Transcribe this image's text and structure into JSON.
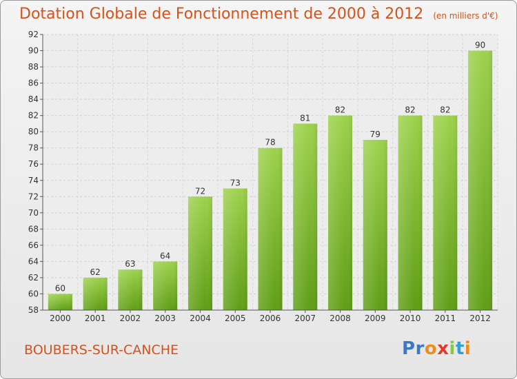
{
  "header": {
    "title": "Dotation Globale de Fonctionnement de 2000 à 2012",
    "unit": "(en milliers d'€)"
  },
  "footer": {
    "commune": "BOUBERS-SUR-CANCHE",
    "logo_letters": [
      "P",
      "r",
      "o",
      "x",
      "i",
      "t",
      "i"
    ],
    "logo_colors": [
      "#3a79c7",
      "#3a79c7",
      "#f08c1e",
      "#e6372b",
      "#8dc63f",
      "#2f9fd8",
      "#f08c1e"
    ]
  },
  "chart_data": {
    "type": "bar",
    "categories": [
      "2000",
      "2001",
      "2002",
      "2003",
      "2004",
      "2005",
      "2006",
      "2007",
      "2008",
      "2009",
      "2010",
      "2011",
      "2012"
    ],
    "values": [
      60,
      62,
      63,
      64,
      72,
      73,
      78,
      81,
      82,
      79,
      82,
      82,
      90
    ],
    "ylim": [
      58,
      92
    ],
    "yticks": [
      58,
      60,
      62,
      64,
      66,
      68,
      70,
      72,
      74,
      76,
      78,
      80,
      82,
      84,
      86,
      88,
      90,
      92
    ],
    "grid": true,
    "bar_color_top": "#9dd14c",
    "bar_color_bottom": "#5f9e16"
  }
}
